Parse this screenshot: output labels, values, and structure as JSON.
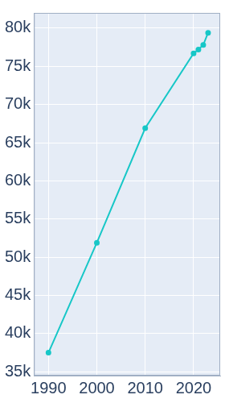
{
  "chart_data": {
    "type": "line",
    "x": [
      1990,
      2000,
      2010,
      2020,
      2021,
      2022,
      2023
    ],
    "values": [
      37500,
      51900,
      66900,
      76700,
      77200,
      77800,
      79400
    ],
    "color": "#17c7c7",
    "marker": "circle",
    "xlim": [
      1987,
      2025.5
    ],
    "xticks": [
      1990,
      2000,
      2010,
      2020
    ],
    "ylim": [
      34500,
      82000
    ],
    "yticks": [
      {
        "value": 35000,
        "label": "35k"
      },
      {
        "value": 40000,
        "label": "40k"
      },
      {
        "value": 45000,
        "label": "45k"
      },
      {
        "value": 50000,
        "label": "50k"
      },
      {
        "value": 55000,
        "label": "55k"
      },
      {
        "value": 60000,
        "label": "60k"
      },
      {
        "value": 65000,
        "label": "65k"
      },
      {
        "value": 70000,
        "label": "70k"
      },
      {
        "value": 75000,
        "label": "75k"
      },
      {
        "value": 80000,
        "label": "80k"
      }
    ],
    "grid": true
  }
}
